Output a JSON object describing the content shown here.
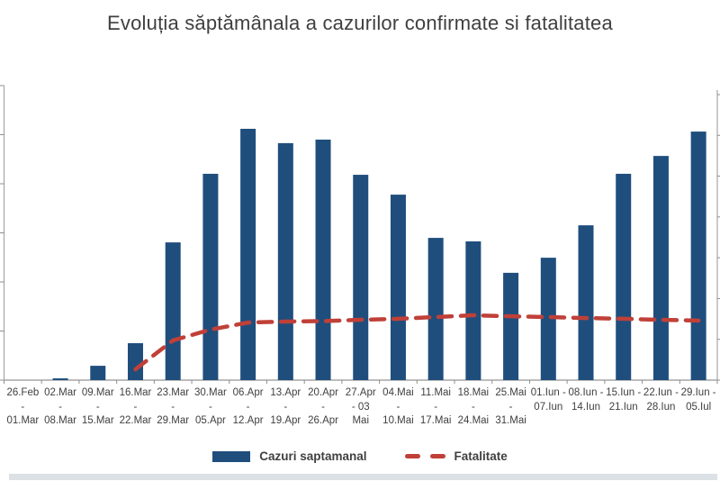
{
  "title": "Evoluția săptămânala a cazurilor confirmate si fatalitatea",
  "legend": {
    "cases_label": "Cazuri saptamanal",
    "fatality_label": "Fatalitate"
  },
  "colors": {
    "bar": "#1f4e7d",
    "line": "#c04038",
    "axis": "#a6a6a6",
    "tick": "#8f8f8f",
    "text": "#404040",
    "title_text": "#3f3f3f",
    "bottom_strip": "#dce1e5"
  },
  "chart_data": {
    "type": "bar",
    "title": "Evoluția săptămânala a cazurilor confirmate si fatalitatea",
    "xlabel": "",
    "ylabel": "",
    "legend_position": "bottom",
    "grid": false,
    "y_axis": {
      "labels_visible": false,
      "note": "Y-axis tick labels are cropped out of the screenshot; only tick marks are visible. Values below are estimated as percent of the tallest bar (06.Apr-12.Apr = 100).",
      "left_tick_count": 7,
      "right_tick_count": 8,
      "ylim_pct": [
        0,
        117
      ]
    },
    "categories": [
      "26.Feb - 01.Mar",
      "02.Mar - 08.Mar",
      "09.Mar - 15.Mar",
      "16.Mar - 22.Mar",
      "23.Mar - 29.Mar",
      "30.Mar - 05.Apr",
      "06.Apr - 12.Apr",
      "13.Apr - 19.Apr",
      "20.Apr - 26.Apr",
      "27.Apr - 03 Mai",
      "04.Mai - 10.Mai",
      "11.Mai - 17.Mai",
      "18.Mai - 24.Mai",
      "25.Mai - 31.Mai",
      "01.Iun - 07.Iun",
      "08.Iun - 14.Iun",
      "15.Iun - 21.Iun",
      "22.Iun - 28.Iun",
      "29.Iun - 05.Iul"
    ],
    "category_tick_lines": [
      [
        "26.Feb",
        "-",
        "01.Mar"
      ],
      [
        "02.Mar",
        "-",
        "08.Mar"
      ],
      [
        "09.Mar",
        "-",
        "15.Mar"
      ],
      [
        "16.Mar",
        "-",
        "22.Mar"
      ],
      [
        "23.Mar",
        "-",
        "29.Mar"
      ],
      [
        "30.Mar",
        "-",
        "05.Apr"
      ],
      [
        "06.Apr",
        "-",
        "12.Apr"
      ],
      [
        "13.Apr",
        "-",
        "19.Apr"
      ],
      [
        "20.Apr",
        "-",
        "26.Apr"
      ],
      [
        "27.Apr",
        "- 03",
        "Mai"
      ],
      [
        "04.Mai",
        "-",
        "10.Mai"
      ],
      [
        "11.Mai",
        "-",
        "17.Mai"
      ],
      [
        "18.Mai",
        "-",
        "24.Mai"
      ],
      [
        "25.Mai",
        "-",
        "31.Mai"
      ],
      [
        "01.Iun -",
        "07.Iun"
      ],
      [
        "08.Iun -",
        "14.Iun"
      ],
      [
        "15.Iun -",
        "21.Iun"
      ],
      [
        "22.Iun -",
        "28.Iun"
      ],
      [
        "29.Iun -",
        "05.Iul"
      ]
    ],
    "series": [
      {
        "name": "Cazuri saptamanal",
        "type": "bar",
        "values_pct_of_max": [
          0,
          0.7,
          5.7,
          14.7,
          54.8,
          82.1,
          100,
          94.3,
          95.7,
          81.7,
          73.8,
          56.6,
          55.2,
          42.7,
          48.7,
          61.6,
          82.1,
          89.2,
          98.9
        ]
      },
      {
        "name": "Fatalitate",
        "type": "line",
        "style": "dashed",
        "values_pct_of_max": [
          null,
          null,
          null,
          4.3,
          15.8,
          20.1,
          22.9,
          23.3,
          23.5,
          24.0,
          24.4,
          25.1,
          25.8,
          25.4,
          25.1,
          24.7,
          24.4,
          24.0,
          23.7
        ]
      }
    ]
  }
}
